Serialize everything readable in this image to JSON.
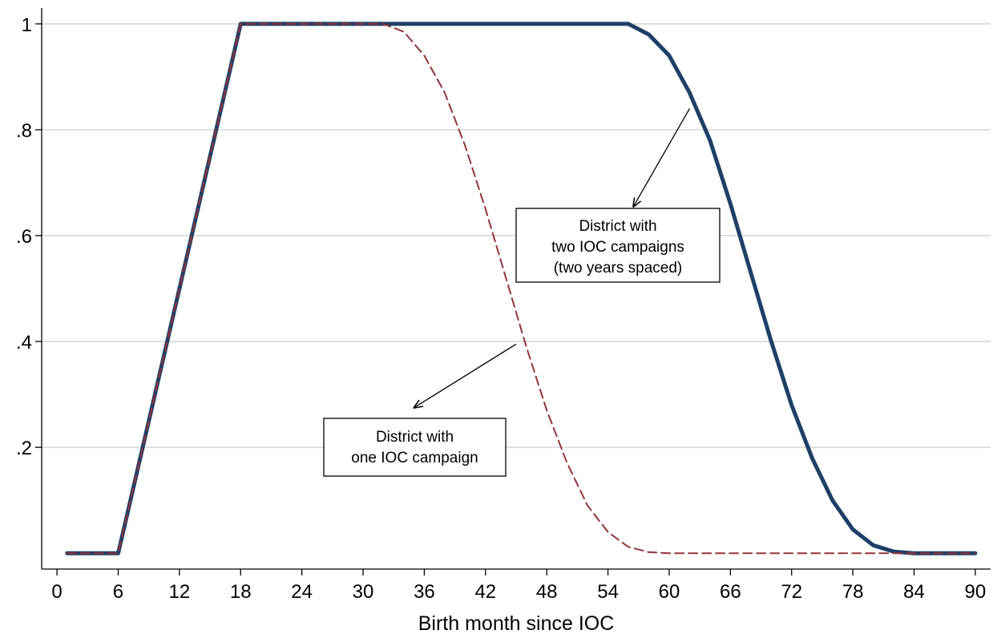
{
  "chart_data": {
    "type": "line",
    "title": "",
    "xlabel": "Birth month since IOC",
    "ylabel": "",
    "xlim": [
      -1.5,
      91.5
    ],
    "ylim": [
      -0.03,
      1.03
    ],
    "grid": "horizontal",
    "x_ticks": [
      0,
      6,
      12,
      18,
      24,
      30,
      36,
      42,
      48,
      54,
      60,
      66,
      72,
      78,
      84,
      90
    ],
    "x_tick_labels": [
      "0",
      "6",
      "12",
      "18",
      "24",
      "30",
      "36",
      "42",
      "48",
      "54",
      "60",
      "66",
      "72",
      "78",
      "84",
      "90"
    ],
    "y_ticks": [
      0.2,
      0.4,
      0.6,
      0.8,
      1
    ],
    "y_tick_labels": [
      ".2",
      ".4",
      ".6",
      ".8",
      "1"
    ],
    "series": [
      {
        "color": "#1f3f66",
        "style": "solid",
        "x": [
          1,
          6,
          18,
          30,
          42,
          54,
          56,
          58,
          60,
          62,
          64,
          66,
          68,
          70,
          72,
          74,
          76,
          78,
          80,
          82,
          84,
          86,
          88,
          90
        ],
        "y": [
          0,
          0,
          1,
          1,
          1,
          1,
          1.0,
          0.98,
          0.94,
          0.87,
          0.78,
          0.66,
          0.53,
          0.4,
          0.28,
          0.18,
          0.1,
          0.045,
          0.015,
          0.003,
          0,
          0,
          0,
          0
        ]
      },
      {
        "color": "#93343a",
        "style": "dashed",
        "x": [
          1,
          6,
          18,
          30,
          32,
          34,
          36,
          38,
          40,
          42,
          44,
          46,
          48,
          50,
          52,
          54,
          56,
          58,
          60,
          66,
          72,
          78,
          84,
          90
        ],
        "y": [
          0,
          0,
          1,
          1,
          1.0,
          0.985,
          0.94,
          0.87,
          0.77,
          0.65,
          0.52,
          0.39,
          0.27,
          0.17,
          0.09,
          0.04,
          0.012,
          0.002,
          0,
          0,
          0,
          0,
          0,
          0
        ]
      }
    ],
    "annotations": [
      {
        "lines": [
          "District with",
          "two IOC campaigns",
          "(two years spaced)"
        ],
        "arrow_from": [
          62,
          0.84
        ],
        "arrow_to": [
          56.5,
          0.655
        ]
      },
      {
        "lines": [
          "District with",
          "one IOC campaign"
        ],
        "arrow_from": [
          45,
          0.395
        ],
        "arrow_to": [
          35,
          0.275
        ]
      }
    ]
  }
}
